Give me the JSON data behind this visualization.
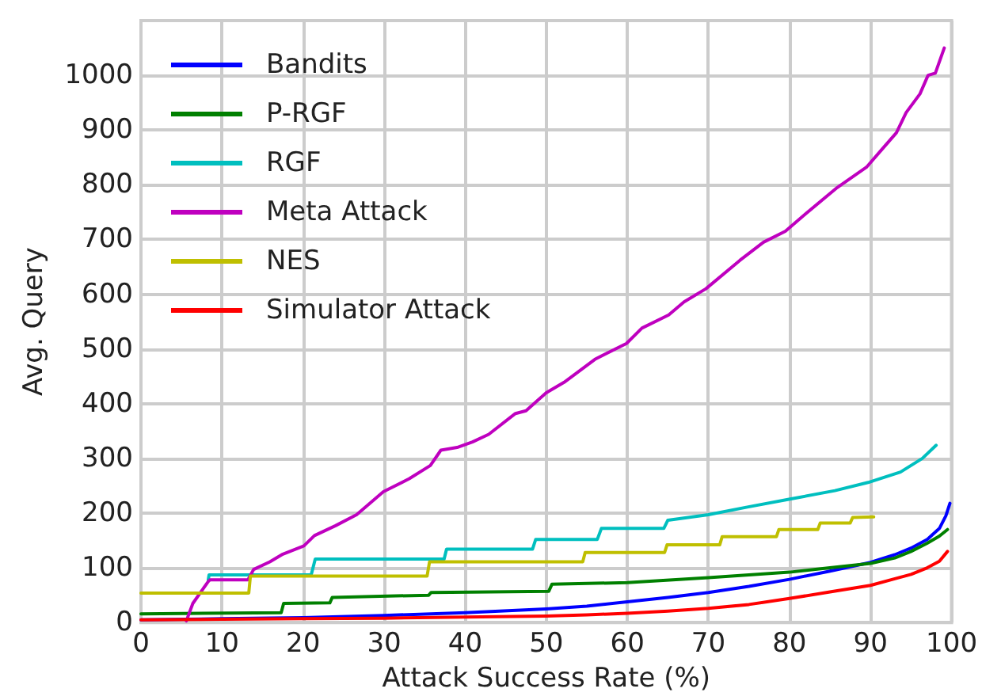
{
  "chart_data": {
    "type": "line",
    "xlabel": "Attack Success Rate (%)",
    "ylabel": "Avg. Query",
    "xlim": [
      0,
      100
    ],
    "xticks": [
      0,
      10,
      20,
      30,
      40,
      50,
      60,
      70,
      80,
      90,
      100
    ],
    "ylim": [
      0,
      1100
    ],
    "yticks": [
      0,
      100,
      200,
      300,
      400,
      500,
      600,
      700,
      800,
      900,
      1000
    ],
    "grid": true,
    "legend": "top left",
    "series": [
      {
        "name": "Bandits",
        "color": "#0000ff",
        "x": [
          0,
          10,
          20,
          30,
          40,
          50,
          55,
          60,
          65,
          70,
          75,
          80,
          85,
          90,
          93,
          95,
          97,
          98.5,
          99.3,
          99.8
        ],
        "values": [
          5,
          7,
          9,
          13,
          18,
          25,
          30,
          38,
          46,
          55,
          66,
          79,
          94,
          110,
          124,
          136,
          152,
          172,
          195,
          218
        ]
      },
      {
        "name": "P-RGF",
        "color": "#008000",
        "x": [
          0,
          17.3,
          17.6,
          23.3,
          23.6,
          35.5,
          35.8,
          50.3,
          50.7,
          60,
          70,
          80,
          85,
          90,
          93,
          95,
          97,
          98.5,
          99.5
        ],
        "values": [
          16,
          18,
          35,
          36,
          46,
          50,
          55,
          57,
          70,
          73,
          82,
          92,
          100,
          108,
          118,
          130,
          145,
          158,
          170
        ]
      },
      {
        "name": "RGF",
        "color": "#00bfbf",
        "x": [
          8.3,
          8.4,
          21,
          21.5,
          37.4,
          37.7,
          48.3,
          48.7,
          56.3,
          56.8,
          64.5,
          65,
          70,
          74.8,
          80.2,
          85.6,
          89.7,
          93.7,
          96.4,
          98.1
        ],
        "values": [
          78,
          87,
          87,
          116,
          116,
          134,
          134,
          152,
          152,
          172,
          172,
          187,
          197,
          211,
          226,
          241,
          256,
          275,
          300,
          324
        ]
      },
      {
        "name": "Meta Attack",
        "color": "#bf00bf",
        "x": [
          5.6,
          6.4,
          8.3,
          8.5,
          13.2,
          13.9,
          15.9,
          17.5,
          20.1,
          21.4,
          24,
          26.6,
          29.9,
          33.1,
          35.7,
          37,
          39,
          40.9,
          42.9,
          46.2,
          47.5,
          50,
          52.2,
          56,
          59.9,
          61.8,
          65.1,
          67,
          69.7,
          73.9,
          76.8,
          79.5,
          82,
          85.9,
          89.5,
          91.2,
          93.2,
          94.4,
          96.1,
          97.1,
          98,
          99.1
        ],
        "values": [
          3,
          35,
          75,
          78,
          78,
          97,
          111,
          125,
          140,
          159,
          177,
          197,
          239,
          263,
          287,
          315,
          320,
          330,
          344,
          382,
          387,
          420,
          439,
          481,
          510,
          538,
          562,
          586,
          610,
          662,
          695,
          715,
          747,
          795,
          832,
          861,
          895,
          932,
          966,
          1000,
          1004,
          1050
        ]
      },
      {
        "name": "NES",
        "color": "#bfbf00",
        "x": [
          0,
          13.3,
          13.5,
          35.3,
          35.6,
          54.5,
          54.8,
          64.6,
          64.9,
          71.4,
          71.7,
          78.4,
          78.7,
          83.5,
          83.8,
          87.5,
          87.8,
          90.4
        ],
        "values": [
          54,
          54,
          85,
          85,
          111,
          111,
          128,
          128,
          142,
          142,
          157,
          157,
          170,
          170,
          182,
          182,
          192,
          193
        ]
      },
      {
        "name": "Simulator Attack",
        "color": "#ff0000",
        "x": [
          0,
          10,
          20,
          30,
          40,
          50,
          55,
          60,
          65,
          70,
          75,
          80,
          85,
          90,
          93,
          95,
          97,
          98.5,
          99.5
        ],
        "values": [
          5,
          6,
          7,
          8,
          10,
          12,
          14,
          17,
          21,
          26,
          33,
          44,
          56,
          68,
          80,
          88,
          100,
          112,
          130
        ]
      }
    ]
  }
}
